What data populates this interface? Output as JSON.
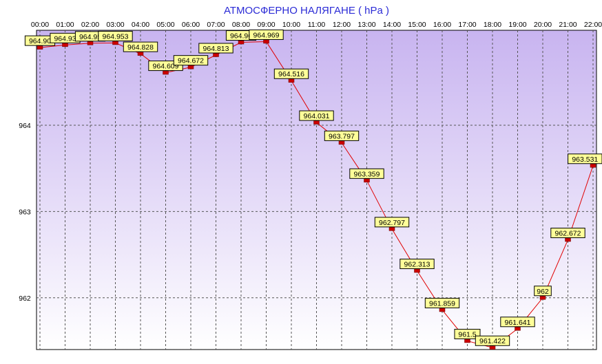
{
  "chart_data": {
    "type": "line",
    "title": "АТМОСФЕРНО НАЛЯГАНЕ  ( hPa )",
    "xlabel": "",
    "ylabel": "",
    "categories": [
      "00:00",
      "01:00",
      "02:00",
      "03:00",
      "04:00",
      "05:00",
      "06:00",
      "07:00",
      "08:00",
      "09:00",
      "10:00",
      "11:00",
      "12:00",
      "13:00",
      "14:00",
      "15:00",
      "16:00",
      "17:00",
      "18:00",
      "19:00",
      "20:00",
      "21:00",
      "22:00"
    ],
    "series": [
      {
        "values": [
          964.9,
          964.93,
          964.95,
          964.953,
          964.828,
          964.609,
          964.672,
          964.813,
          964.96,
          964.969,
          964.516,
          964.031,
          963.797,
          963.359,
          962.797,
          962.313,
          961.859,
          961.5,
          961.422,
          961.641,
          962,
          962.672,
          963.531
        ],
        "labels": [
          "964.90",
          "964.93",
          "964.95",
          "964.953",
          "964.828",
          "964.609",
          "964.672",
          "964.813",
          "964.96",
          "964.969",
          "964.516",
          "964.031",
          "963.797",
          "963.359",
          "962.797",
          "962.313",
          "961.859",
          "961.5",
          "961.422",
          "961.641",
          "962",
          "962.672",
          "963.531"
        ]
      }
    ],
    "yticks": [
      962,
      963,
      964
    ],
    "ylim": [
      961.4,
      965.1
    ],
    "grid": true,
    "legend": "none",
    "colors": {
      "line": "#e00000",
      "marker": "#cc0000",
      "label_bg": "#ffff99",
      "title": "#2b2bd6",
      "grid": "#555555",
      "plot_bg_top": "#c8b4f0",
      "plot_bg_bottom": "#ffffff"
    }
  }
}
